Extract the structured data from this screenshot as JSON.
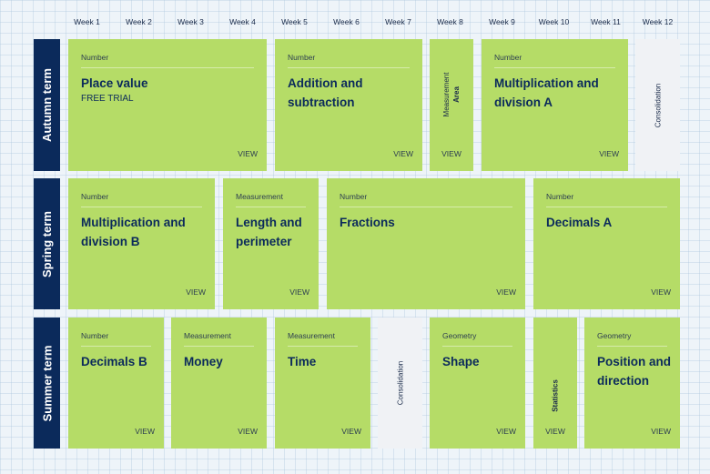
{
  "weeks": [
    "Week 1",
    "Week 2",
    "Week 3",
    "Week 4",
    "Week 5",
    "Week 6",
    "Week 7",
    "Week 8",
    "Week 9",
    "Week 10",
    "Week 11",
    "Week 12"
  ],
  "terms": {
    "autumn": "Autumn term",
    "spring": "Spring term",
    "summer": "Summer term"
  },
  "view_label": "VIEW",
  "autumn": {
    "place_value": {
      "category": "Number",
      "title": "Place value",
      "badge": "FREE TRIAL"
    },
    "addition": {
      "category": "Number",
      "title": "Addition and subtraction"
    },
    "area": {
      "category": "Measurement",
      "title": "Area"
    },
    "mult_a": {
      "category": "Number",
      "title": "Multiplication and division A"
    },
    "consolidation": "Consolidation"
  },
  "spring": {
    "mult_b": {
      "category": "Number",
      "title": "Multiplication and division B"
    },
    "length": {
      "category": "Measurement",
      "title": "Length and perimeter"
    },
    "fractions": {
      "category": "Number",
      "title": "Fractions"
    },
    "decimals_a": {
      "category": "Number",
      "title": "Decimals A"
    }
  },
  "summer": {
    "decimals_b": {
      "category": "Number",
      "title": "Decimals B"
    },
    "money": {
      "category": "Measurement",
      "title": "Money"
    },
    "time": {
      "category": "Measurement",
      "title": "Time"
    },
    "consolidation": "Consolidation",
    "shape": {
      "category": "Geometry",
      "title": "Shape"
    },
    "statistics": "Statistics",
    "position": {
      "category": "Geometry",
      "title": "Position and direction"
    }
  }
}
